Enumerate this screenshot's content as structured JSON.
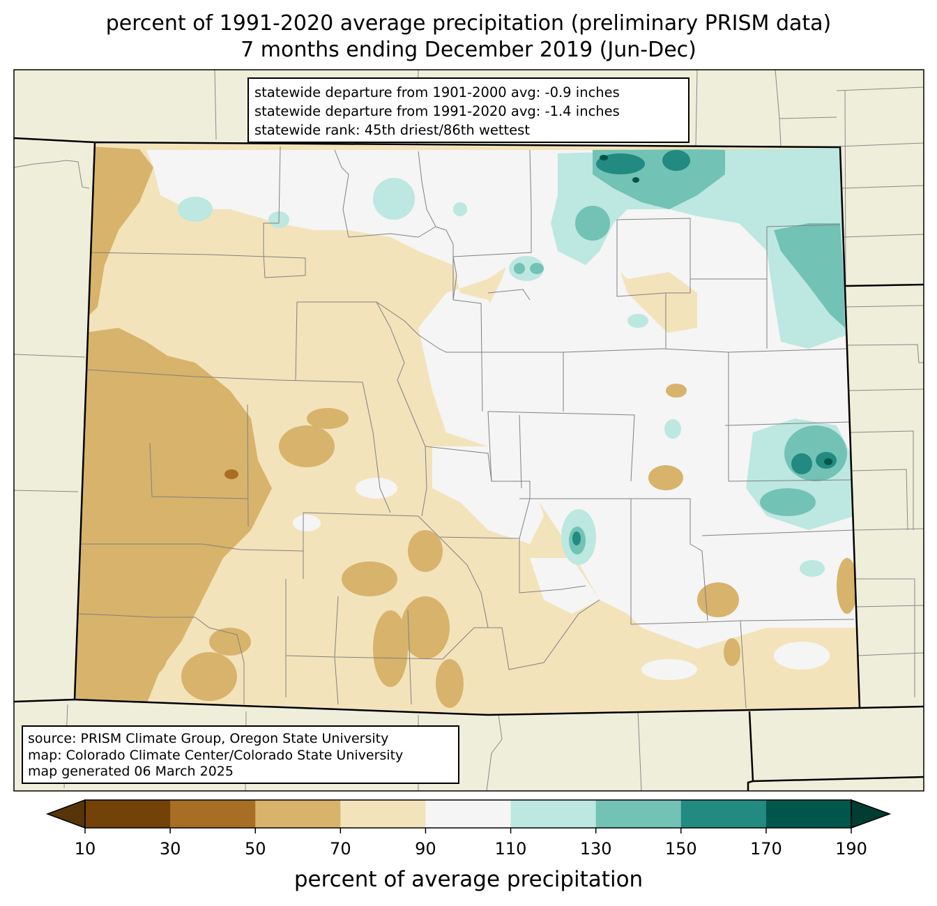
{
  "title": {
    "line1": "percent of 1991-2020 average precipitation (preliminary PRISM data)",
    "line2": "7 months ending December 2019 (Jun-Dec)"
  },
  "stats_box": {
    "line1": "statewide departure from 1901-2000 avg: -0.9 inches",
    "line2": "statewide departure from 1991-2020 avg: -1.4 inches",
    "line3": "statewide rank: 45th driest/86th wettest"
  },
  "source_box": {
    "line1": "source: PRISM Climate Group, Oregon State University",
    "line2": "map: Colorado Climate Center/Colorado State University",
    "line3": "map generated 06 March 2025"
  },
  "colorbar": {
    "label": "percent of average precipitation",
    "ticks": [
      "10",
      "30",
      "50",
      "70",
      "90",
      "110",
      "130",
      "150",
      "170",
      "190"
    ],
    "colors": [
      "#724208",
      "#a86e24",
      "#d8b36b",
      "#f3e3bb",
      "#f4f5f4",
      "#bde7e1",
      "#72c2b5",
      "#228a80",
      "#01564b"
    ],
    "under_color": "#573509",
    "over_color": "#013d33"
  },
  "map_colors": {
    "land": "#efeedb",
    "d30_50": "#a86e24",
    "d50_70": "#d8b36b",
    "d70_90": "#f3e3bb",
    "n90_110": "#f4f5f4",
    "w110_130": "#bde7e1",
    "w130_150": "#72c2b5",
    "w150_170": "#228a80",
    "w170_190": "#01564b"
  }
}
